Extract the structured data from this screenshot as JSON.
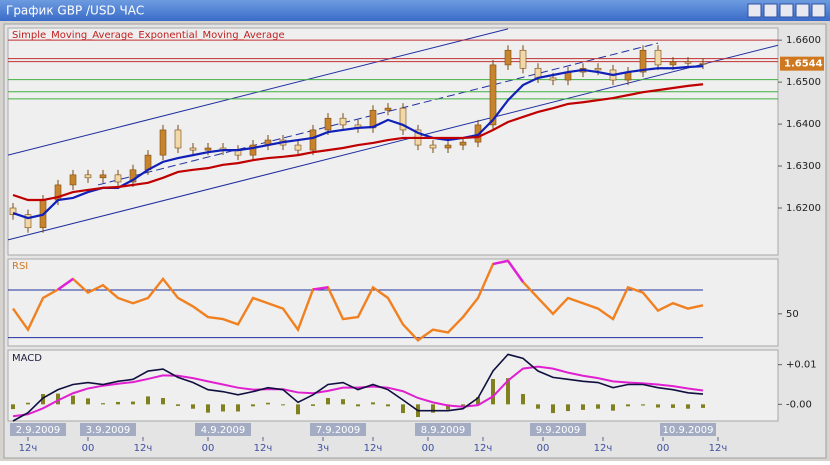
{
  "window": {
    "title": "График GBP /USD  ЧАС"
  },
  "chart_data": [
    {
      "type": "candlestick",
      "x": [
        1,
        4,
        7,
        10,
        13,
        16,
        19,
        22,
        25,
        28,
        31,
        34,
        37,
        40,
        43,
        46,
        49,
        52,
        55,
        58,
        61,
        64,
        67,
        70,
        73,
        76,
        79,
        82,
        85,
        88,
        91,
        94,
        97,
        100,
        103,
        106,
        109,
        112,
        115,
        118,
        121,
        124,
        127,
        130,
        133,
        136,
        139
      ],
      "open": [
        1.62,
        1.6184,
        1.6153,
        1.6219,
        1.6255,
        1.6279,
        1.6272,
        1.6279,
        1.6262,
        1.6291,
        1.6326,
        1.6386,
        1.6343,
        1.6338,
        1.6343,
        1.6338,
        1.6326,
        1.635,
        1.6362,
        1.635,
        1.6338,
        1.6386,
        1.6414,
        1.6398,
        1.6391,
        1.6433,
        1.6438,
        1.6386,
        1.635,
        1.6343,
        1.635,
        1.6357,
        1.6398,
        1.6541,
        1.6576,
        1.6533,
        1.651,
        1.6505,
        1.6524,
        1.6533,
        1.6529,
        1.6505,
        1.6524,
        1.6576,
        1.6541,
        1.6548,
        1.6545
      ],
      "high": [
        1.6212,
        1.6196,
        1.6231,
        1.6267,
        1.6291,
        1.6291,
        1.6291,
        1.6291,
        1.6303,
        1.6338,
        1.6398,
        1.6398,
        1.6355,
        1.6355,
        1.6355,
        1.635,
        1.6362,
        1.6374,
        1.6374,
        1.6362,
        1.6398,
        1.6426,
        1.6426,
        1.641,
        1.6445,
        1.645,
        1.645,
        1.6398,
        1.6362,
        1.6362,
        1.6369,
        1.641,
        1.6553,
        1.6588,
        1.6588,
        1.6545,
        1.6522,
        1.6536,
        1.6545,
        1.6545,
        1.6541,
        1.6536,
        1.6588,
        1.6588,
        1.656,
        1.656,
        1.6557
      ],
      "low": [
        1.6172,
        1.6141,
        1.6141,
        1.6207,
        1.6243,
        1.626,
        1.626,
        1.625,
        1.625,
        1.6279,
        1.6314,
        1.6331,
        1.6326,
        1.6326,
        1.6326,
        1.6314,
        1.6314,
        1.6338,
        1.6338,
        1.6326,
        1.6326,
        1.6374,
        1.6386,
        1.6379,
        1.6379,
        1.6421,
        1.6374,
        1.6338,
        1.6331,
        1.6331,
        1.6338,
        1.6345,
        1.6386,
        1.6529,
        1.6521,
        1.6498,
        1.6493,
        1.6493,
        1.6512,
        1.6517,
        1.6493,
        1.6493,
        1.6512,
        1.6529,
        1.6529,
        1.6533,
        1.6531
      ],
      "close": [
        1.6184,
        1.6153,
        1.6219,
        1.6255,
        1.6279,
        1.6272,
        1.6279,
        1.6262,
        1.6291,
        1.6326,
        1.6386,
        1.6343,
        1.6338,
        1.6343,
        1.6338,
        1.6326,
        1.635,
        1.6362,
        1.635,
        1.6338,
        1.6386,
        1.6414,
        1.6398,
        1.6391,
        1.6433,
        1.6438,
        1.6386,
        1.635,
        1.6343,
        1.635,
        1.6357,
        1.6398,
        1.6541,
        1.6576,
        1.6533,
        1.651,
        1.6505,
        1.6524,
        1.6533,
        1.6529,
        1.6505,
        1.6524,
        1.6576,
        1.6541,
        1.6548,
        1.6545,
        1.6543
      ],
      "candle_color": "#c8842c",
      "series": [
        {
          "name": "Simple_Moving_Average",
          "color": "#1020b8",
          "values": [
            1.6188,
            1.6176,
            1.6184,
            1.6219,
            1.6224,
            1.6238,
            1.6248,
            1.6248,
            1.6267,
            1.6291,
            1.631,
            1.6319,
            1.6326,
            1.6333,
            1.6338,
            1.6338,
            1.6343,
            1.635,
            1.6357,
            1.6362,
            1.6367,
            1.6381,
            1.6386,
            1.6391,
            1.6393,
            1.641,
            1.6398,
            1.6379,
            1.6367,
            1.6362,
            1.6367,
            1.6374,
            1.641,
            1.6457,
            1.6493,
            1.651,
            1.6517,
            1.6524,
            1.6529,
            1.6524,
            1.6517,
            1.6524,
            1.6529,
            1.6533,
            1.6533,
            1.6536,
            1.6538
          ]
        },
        {
          "name": "Exponential_Moving_Average",
          "color": "#c00000",
          "values": [
            1.6231,
            1.6219,
            1.6219,
            1.6226,
            1.6238,
            1.6243,
            1.6248,
            1.625,
            1.6255,
            1.626,
            1.6272,
            1.6286,
            1.6291,
            1.6295,
            1.6303,
            1.6307,
            1.6314,
            1.6319,
            1.6322,
            1.6326,
            1.6333,
            1.6338,
            1.6343,
            1.635,
            1.6355,
            1.6362,
            1.6367,
            1.6367,
            1.6367,
            1.6367,
            1.6367,
            1.6369,
            1.6386,
            1.6405,
            1.6417,
            1.6429,
            1.6438,
            1.6448,
            1.6452,
            1.6457,
            1.6462,
            1.6469,
            1.6476,
            1.6481,
            1.6486,
            1.6491,
            1.6495
          ]
        }
      ],
      "legend_color": "#c02020",
      "levels": [
        {
          "value": 1.66,
          "color": "#c03030"
        },
        {
          "value": 1.6556,
          "color": "#c03030"
        },
        {
          "value": 1.6549,
          "color": "#c03030"
        },
        {
          "value": 1.6506,
          "color": "#40b040"
        },
        {
          "value": 1.6477,
          "color": "#40b040"
        },
        {
          "value": 1.646,
          "color": "#40b040"
        }
      ],
      "trendlines": [
        {
          "x": [
            0,
            154
          ],
          "y": [
            1.6124,
            1.6588
          ],
          "color": "#2030a0",
          "dashed": false
        },
        {
          "x": [
            0,
            100
          ],
          "y": [
            1.6326,
            1.6627
          ],
          "color": "#2030a0",
          "dashed": false
        },
        {
          "x": [
            18,
            130
          ],
          "y": [
            1.6255,
            1.6593
          ],
          "color": "#2030a0",
          "dashed": true
        }
      ],
      "last_price": 1.6544,
      "last_price_color": "#d07820",
      "xlim": [
        0,
        154
      ],
      "ylim": [
        1.6088,
        1.6629
      ],
      "yticks": [
        {
          "value": 1.62,
          "label": "1.6200"
        },
        {
          "value": 1.63,
          "label": "1.6300"
        },
        {
          "value": 1.64,
          "label": "1.6400"
        },
        {
          "value": 1.65,
          "label": "1.6500"
        },
        {
          "value": 1.66,
          "label": "1.6600"
        }
      ]
    },
    {
      "type": "line",
      "title": "RSI",
      "color": "#f08020",
      "overbought_color": "#e020e0",
      "oversold_color": "#20e020",
      "x": [
        1,
        4,
        7,
        10,
        13,
        16,
        19,
        22,
        25,
        28,
        31,
        34,
        37,
        40,
        43,
        46,
        49,
        52,
        55,
        58,
        61,
        64,
        67,
        70,
        73,
        76,
        79,
        82,
        85,
        88,
        91,
        94,
        97,
        100,
        103,
        106,
        109,
        112,
        115,
        118,
        121,
        124,
        127,
        130,
        133,
        136,
        139
      ],
      "values": [
        54.4,
        36.7,
        63.3,
        70.4,
        79.3,
        67.8,
        74.0,
        63.3,
        58.9,
        63.3,
        79.3,
        63.3,
        56.2,
        47.3,
        45.6,
        41.1,
        63.3,
        58.9,
        54.4,
        36.7,
        70.4,
        72.2,
        45.6,
        47.3,
        72.2,
        63.3,
        41.1,
        27.8,
        36.7,
        34.4,
        47.3,
        63.3,
        91.8,
        94.5,
        76.7,
        63.3,
        50.0,
        63.3,
        58.9,
        54.4,
        45.6,
        72.2,
        67.8,
        52.7,
        58.9,
        54.4,
        57.1
      ],
      "levels": [
        70,
        30
      ],
      "level_color": "#2030a0",
      "xlim": [
        0,
        154
      ],
      "ylim": [
        23,
        96
      ],
      "yticks": [
        50
      ]
    },
    {
      "type": "macd",
      "title": "MACD",
      "x": [
        1,
        4,
        7,
        10,
        13,
        16,
        19,
        22,
        25,
        28,
        31,
        34,
        37,
        40,
        43,
        46,
        49,
        52,
        55,
        58,
        61,
        64,
        67,
        70,
        73,
        76,
        79,
        82,
        85,
        88,
        91,
        94,
        97,
        100,
        103,
        106,
        109,
        112,
        115,
        118,
        121,
        124,
        127,
        130,
        133,
        136,
        139
      ],
      "macd": [
        -0.0042,
        -0.0021,
        0.0016,
        0.0037,
        0.005,
        0.0055,
        0.005,
        0.0058,
        0.0063,
        0.0084,
        0.0089,
        0.0068,
        0.0055,
        0.0037,
        0.0032,
        0.0024,
        0.0032,
        0.0042,
        0.0037,
        0.0005,
        0.0024,
        0.005,
        0.0055,
        0.0037,
        0.005,
        0.0037,
        0.0011,
        -0.0016,
        -0.0016,
        -0.0016,
        -0.0011,
        0.0016,
        0.0084,
        0.0126,
        0.0116,
        0.0084,
        0.0068,
        0.0063,
        0.0058,
        0.0055,
        0.0042,
        0.005,
        0.005,
        0.0042,
        0.0037,
        0.0029,
        0.0026
      ],
      "signal": [
        -0.003,
        -0.0025,
        -0.001,
        0.001,
        0.0028,
        0.004,
        0.0047,
        0.0052,
        0.0056,
        0.0064,
        0.0073,
        0.0072,
        0.0066,
        0.0058,
        0.005,
        0.0042,
        0.0037,
        0.0038,
        0.0038,
        0.003,
        0.0028,
        0.0034,
        0.0042,
        0.0042,
        0.0045,
        0.0042,
        0.0033,
        0.0016,
        0.0005,
        -0.0003,
        -0.0006,
        -0.0002,
        0.002,
        0.006,
        0.009,
        0.0095,
        0.009,
        0.008,
        0.0072,
        0.0066,
        0.0058,
        0.0055,
        0.0053,
        0.005,
        0.0046,
        0.004,
        0.0035
      ],
      "histogram": [
        -0.0012,
        0.0004,
        0.0026,
        0.0027,
        0.0022,
        0.0015,
        0.0003,
        0.0006,
        0.0007,
        0.002,
        0.0016,
        -0.0004,
        -0.0011,
        -0.0021,
        -0.0018,
        -0.0018,
        -0.0005,
        0.0004,
        -0.0001,
        -0.0025,
        -0.0004,
        0.0016,
        0.0013,
        -0.0005,
        0.0005,
        -0.0005,
        -0.0022,
        -0.0032,
        -0.0021,
        -0.0013,
        -0.0005,
        0.0018,
        0.0064,
        0.0066,
        0.0026,
        -0.0011,
        -0.0022,
        -0.0017,
        -0.0014,
        -0.0011,
        -0.0016,
        -0.0005,
        -0.0003,
        -0.0008,
        -0.0009,
        -0.0011,
        -0.0009
      ],
      "macd_color": "#101040",
      "signal_color": "#e020d0",
      "histogram_color": "#808020",
      "xlim": [
        0,
        154
      ],
      "ylim": [
        -0.0042,
        0.0137
      ],
      "yticks": [
        {
          "value": 0.01,
          "label": "+0.01"
        },
        {
          "value": 0,
          "label": "-0.00"
        }
      ],
      "xticks": [
        {
          "value": 6,
          "label": "2.9.2009"
        },
        {
          "value": 20,
          "label": "3.9.2009"
        },
        {
          "value": 43,
          "label": "4.9.2009"
        },
        {
          "value": 66,
          "label": "7.9.2009"
        },
        {
          "value": 87,
          "label": "8.9.2009"
        },
        {
          "value": 110,
          "label": "9.9.2009"
        },
        {
          "value": 136,
          "label": "10.9.2009"
        }
      ],
      "xticks_minor": [
        {
          "value": 4,
          "label": "12ч"
        },
        {
          "value": 16,
          "label": "00"
        },
        {
          "value": 27,
          "label": "12ч"
        },
        {
          "value": 40,
          "label": "00"
        },
        {
          "value": 51,
          "label": "12ч"
        },
        {
          "value": 63,
          "label": "3ч"
        },
        {
          "value": 73,
          "label": "12ч"
        },
        {
          "value": 84,
          "label": "00"
        },
        {
          "value": 95,
          "label": "12ч"
        },
        {
          "value": 107,
          "label": "00"
        },
        {
          "value": 119,
          "label": "12ч"
        },
        {
          "value": 131,
          "label": "00"
        },
        {
          "value": 142,
          "label": "12ч"
        }
      ]
    }
  ]
}
